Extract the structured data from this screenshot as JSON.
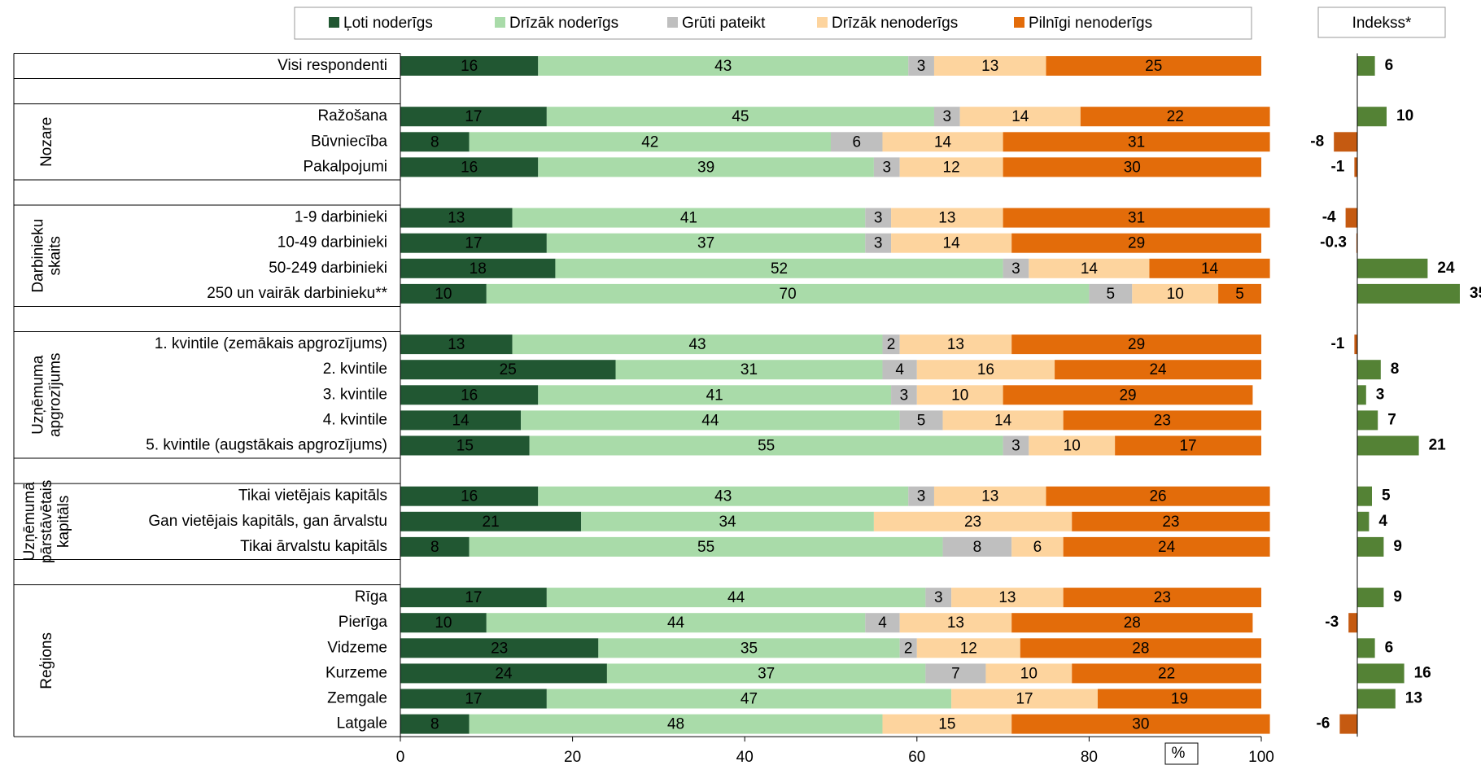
{
  "chart_data": {
    "type": "stacked_bar",
    "groups": [
      {
        "name": null,
        "categories": [
          "Visi respondenti"
        ]
      },
      {
        "name": [
          "Nozare"
        ],
        "categories": [
          "Ražošana",
          "Būvniecība",
          "Pakalpojumi"
        ]
      },
      {
        "name": [
          "Darbinieku",
          "skaits"
        ],
        "categories": [
          "1-9 darbinieki",
          "10-49 darbinieki",
          "50-249 darbinieki",
          "250 un vairāk darbinieku**"
        ]
      },
      {
        "name": [
          "Uzņēmuma",
          "apgrozījums"
        ],
        "categories": [
          "1. kvintile (zemākais apgrozījums)",
          "2. kvintile",
          "3. kvintile",
          "4. kvintile",
          "5. kvintile (augstākais apgrozījums)"
        ]
      },
      {
        "name": [
          "Uzņēmumā",
          "pārstāvētais",
          "kapitāls"
        ],
        "categories": [
          "Tikai vietējais kapitāls",
          "Gan vietējais kapitāls, gan ārvalstu",
          "Tikai ārvalstu kapitāls"
        ]
      },
      {
        "name": [
          "Reģions"
        ],
        "categories": [
          "Rīga",
          "Pierīga",
          "Vidzeme",
          "Kurzeme",
          "Zemgale",
          "Latgale"
        ]
      }
    ],
    "series": [
      {
        "name": "Ļoti noderīgs",
        "color": "#215732",
        "label_color": "#ffffff",
        "values": [
          16,
          17,
          8,
          16,
          13,
          17,
          18,
          10,
          13,
          25,
          16,
          14,
          15,
          16,
          21,
          8,
          17,
          10,
          23,
          24,
          17,
          8
        ]
      },
      {
        "name": "Drīzāk noderīgs",
        "color": "#a9dba9",
        "label_color": "#000000",
        "values": [
          43,
          45,
          42,
          39,
          41,
          37,
          52,
          70,
          43,
          31,
          41,
          44,
          55,
          43,
          34,
          55,
          44,
          44,
          35,
          37,
          47,
          48
        ]
      },
      {
        "name": "Grūti pateikt",
        "color": "#bfbfbf",
        "label_color": "#000000",
        "values": [
          3,
          3,
          6,
          3,
          3,
          3,
          3,
          5,
          2,
          4,
          3,
          5,
          3,
          3,
          null,
          8,
          3,
          4,
          2,
          7,
          null,
          null
        ]
      },
      {
        "name": "Drīzāk nenoderīgs",
        "color": "#fdd49e",
        "label_color": "#000000",
        "values": [
          13,
          14,
          14,
          12,
          13,
          14,
          14,
          10,
          13,
          16,
          10,
          14,
          10,
          13,
          23,
          6,
          13,
          13,
          12,
          10,
          17,
          15
        ]
      },
      {
        "name": "Pilnīgi nenoderīgs",
        "color": "#e36c0a",
        "label_color": "#ffffff",
        "values": [
          25,
          22,
          31,
          30,
          31,
          29,
          14,
          5,
          29,
          24,
          29,
          23,
          17,
          26,
          23,
          24,
          23,
          28,
          28,
          22,
          19,
          30
        ]
      }
    ],
    "xlim": [
      0,
      100
    ],
    "xticks": [
      0,
      20,
      40,
      60,
      80,
      100
    ],
    "xlabel": "%",
    "index": {
      "title": "Indekss*",
      "values": [
        6,
        10,
        -8,
        -1,
        -4,
        -0.3,
        24,
        35,
        -1,
        8,
        3,
        7,
        21,
        5,
        4,
        9,
        9,
        -3,
        6,
        16,
        13,
        -6
      ],
      "xlim": [
        -10,
        40
      ],
      "color_positive": "#548235",
      "color_negative": "#c55a11"
    }
  }
}
